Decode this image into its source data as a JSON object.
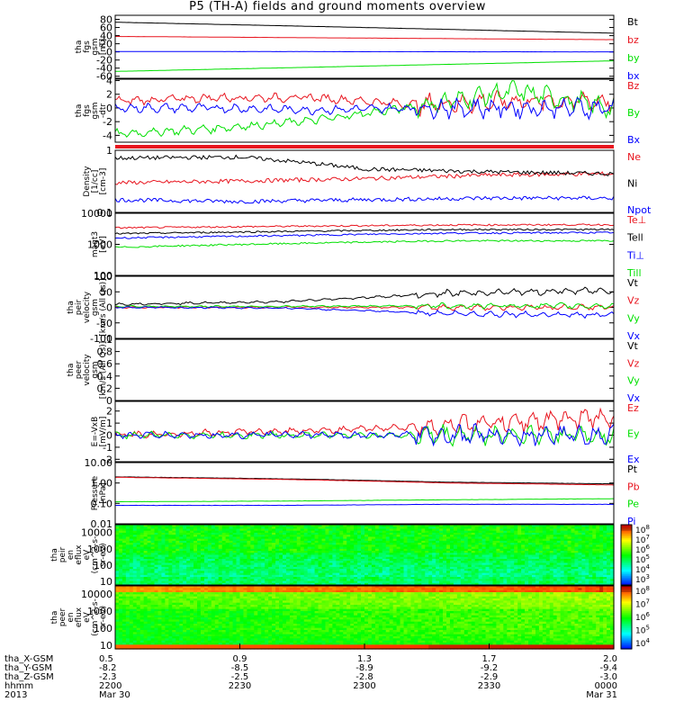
{
  "title": "P5 (TH-A) fields and ground moments overview",
  "colors": {
    "black": "#000000",
    "red": "#e8141e",
    "green": "#00e000",
    "blue": "#0000ff"
  },
  "chart_data": [
    {
      "type": "line",
      "name": "fgs",
      "ylabel": [
        "tha",
        "fgs",
        "gsm",
        "[nT]"
      ],
      "ylim": [
        -65,
        90
      ],
      "yticks": [
        80,
        60,
        40,
        20,
        0,
        -20,
        -40,
        -60
      ],
      "series": [
        {
          "name": "Bt",
          "color": "black",
          "values": [
            73,
            60,
            46
          ]
        },
        {
          "name": "bz",
          "color": "red",
          "values": [
            38,
            30
          ]
        },
        {
          "name": "by",
          "color": "green",
          "values": [
            -48,
            -22
          ]
        },
        {
          "name": "bx",
          "color": "blue",
          "values": [
            1,
            0
          ]
        }
      ]
    },
    {
      "type": "line",
      "name": "fgs_dtr",
      "ylabel": [
        "tha",
        "fgs",
        "gsm",
        "-dtr"
      ],
      "ylim": [
        -5,
        4.2
      ],
      "yticks": [
        4,
        2,
        0,
        -2,
        -4
      ],
      "series": [
        {
          "name": "Bz",
          "color": "red",
          "values": [
            1,
            1.5,
            1.5,
            0.5,
            1,
            1
          ]
        },
        {
          "name": "By",
          "color": "green",
          "values": [
            -3.8,
            -3,
            -1.8,
            0.2,
            2.5,
            0
          ]
        },
        {
          "name": "Bx",
          "color": "blue",
          "values": [
            0,
            0,
            -0.3,
            0,
            0,
            0
          ]
        }
      ]
    },
    {
      "type": "line",
      "name": "density",
      "ylabel": [
        "Density",
        "[1/cc]",
        "[cm-3]"
      ],
      "log": true,
      "ylim": [
        0.1,
        1.0
      ],
      "yticks": [
        1.0,
        0.1
      ],
      "series": [
        {
          "name": "Ne",
          "color": "red",
          "values": [
            0.3,
            0.32,
            0.35,
            0.4,
            0.42
          ]
        },
        {
          "name": "Ni",
          "color": "black",
          "values": [
            0.75,
            0.78,
            0.5,
            0.45,
            0.42
          ]
        },
        {
          "name": "Npot",
          "color": "blue",
          "values": [
            0.16,
            0.15,
            0.16,
            0.17,
            0.17
          ]
        }
      ]
    },
    {
      "type": "line",
      "name": "temp",
      "ylabel": [
        "magt3",
        "[eV]"
      ],
      "log": true,
      "ylim": [
        100,
        10000
      ],
      "yticks": [
        10000,
        1000,
        100
      ],
      "series": [
        {
          "name": "Te⊥",
          "color": "red",
          "values": [
            3400,
            3800,
            4200,
            4300
          ]
        },
        {
          "name": "Tell",
          "color": "black",
          "values": [
            2200,
            2600,
            3000,
            3000
          ]
        },
        {
          "name": "Ti⊥",
          "color": "blue",
          "values": [
            1600,
            1900,
            2300,
            2400
          ]
        },
        {
          "name": "Till",
          "color": "green",
          "values": [
            800,
            1050,
            1300,
            1300
          ]
        }
      ]
    },
    {
      "type": "line",
      "name": "peir_velocity",
      "ylabel": [
        "tha",
        "peir",
        "velocity",
        "gsm",
        "[km/s (All Qs)]"
      ],
      "ylim": [
        -100,
        100
      ],
      "yticks": [
        100,
        50,
        0,
        -50,
        -100
      ],
      "series": [
        {
          "name": "Vt",
          "color": "black",
          "values": [
            10,
            18,
            45,
            55
          ]
        },
        {
          "name": "Vz",
          "color": "red",
          "values": [
            0,
            0,
            0,
            0
          ]
        },
        {
          "name": "Vy",
          "color": "green",
          "values": [
            3,
            3,
            5,
            5
          ]
        },
        {
          "name": "Vx",
          "color": "blue",
          "values": [
            0,
            -2,
            -20,
            -25
          ]
        }
      ]
    },
    {
      "type": "line",
      "name": "peer_velocity",
      "ylabel": [
        "tha",
        "peer",
        "velocity",
        "gsm",
        "[km/s (All Qs)]"
      ],
      "ylim": [
        0,
        1.0
      ],
      "yticks": [
        1.0,
        0.8,
        0.6,
        0.4,
        0.2,
        0.0
      ],
      "series": [
        {
          "name": "Vt",
          "color": "black",
          "values": []
        },
        {
          "name": "Vz",
          "color": "red",
          "values": []
        },
        {
          "name": "Vy",
          "color": "green",
          "values": []
        },
        {
          "name": "Vx",
          "color": "blue",
          "values": []
        }
      ]
    },
    {
      "type": "line",
      "name": "efield",
      "ylabel": [
        "E=-VxB",
        "[mV/m]"
      ],
      "ylim": [
        -2.2,
        2.8
      ],
      "yticks": [
        2,
        1,
        0,
        -1,
        -2
      ],
      "series": [
        {
          "name": "Ez",
          "color": "red",
          "values": [
            0,
            0.5,
            1.5
          ]
        },
        {
          "name": "Ey",
          "color": "green",
          "values": [
            0,
            0,
            0
          ]
        },
        {
          "name": "Ex",
          "color": "blue",
          "values": [
            0,
            0,
            0
          ]
        }
      ]
    },
    {
      "type": "line",
      "name": "pressure",
      "ylabel": [
        "Pressure",
        "[nPa]"
      ],
      "log": true,
      "ylim": [
        0.01,
        10
      ],
      "yticks": [
        10.0,
        1.0,
        0.1,
        0.01
      ],
      "ytick_labels": [
        "10.00",
        "1.00",
        "0.10",
        "0.01"
      ],
      "series": [
        {
          "name": "Pt",
          "color": "black",
          "values": [
            2.0,
            1.6,
            1.1,
            0.9
          ]
        },
        {
          "name": "Pb",
          "color": "red",
          "values": [
            1.9,
            1.5,
            1.0,
            0.8
          ]
        },
        {
          "name": "Pe",
          "color": "green",
          "values": [
            0.12,
            0.13,
            0.15,
            0.17
          ]
        },
        {
          "name": "Pi",
          "color": "blue",
          "values": [
            0.08,
            0.08,
            0.09,
            0.09
          ]
        }
      ]
    },
    {
      "type": "heatmap",
      "name": "peir_en_eflux",
      "ylabel": [
        "tha",
        "peir",
        "en",
        "eflux",
        "eV",
        "(cm^2-s-",
        "sr-eV)"
      ],
      "log": true,
      "ylim": [
        6,
        30000
      ],
      "yticks": [
        10000,
        1000,
        100,
        10
      ],
      "colorbar": {
        "exponents": [
          8,
          7,
          6,
          5,
          4,
          3
        ]
      }
    },
    {
      "type": "heatmap",
      "name": "peer_en_eflux",
      "ylabel": [
        "tha",
        "peer",
        "en",
        "eflux",
        "eV",
        "(cm^2-s-",
        "sr-eV)"
      ],
      "log": true,
      "ylim": [
        6,
        30000
      ],
      "yticks": [
        10000,
        1000,
        100,
        10
      ],
      "colorbar": {
        "exponents": [
          8,
          7,
          6,
          5,
          4
        ]
      }
    }
  ],
  "xaxis": {
    "rows": [
      {
        "label": "tha_X-GSM",
        "values": [
          "0.5",
          "0.9",
          "1.3",
          "1.7",
          "2.0"
        ]
      },
      {
        "label": "tha_Y-GSM",
        "values": [
          "-8.2",
          "-8.5",
          "-8.9",
          "-9.2",
          "-9.4"
        ]
      },
      {
        "label": "tha_Z-GSM",
        "values": [
          "-2.3",
          "-2.5",
          "-2.8",
          "-2.9",
          "-3.0"
        ]
      },
      {
        "label": "hhmm",
        "values": [
          "2200",
          "2230",
          "2300",
          "2330",
          "0000"
        ]
      },
      {
        "label": "2013",
        "values": [
          "Mar 30",
          "",
          "",
          "",
          "Mar 31"
        ]
      }
    ]
  }
}
